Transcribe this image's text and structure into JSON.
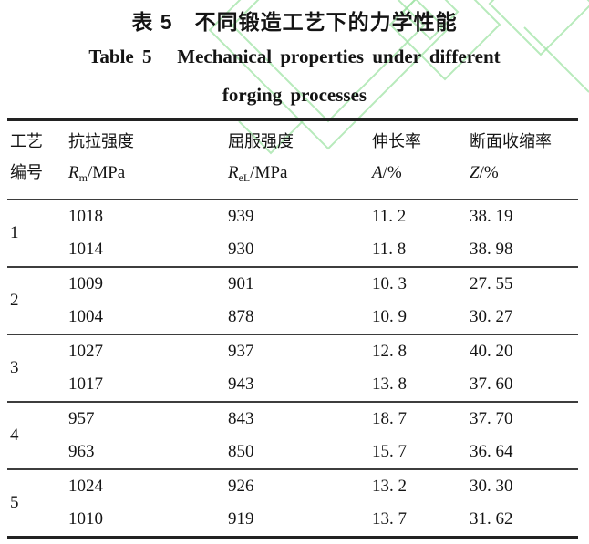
{
  "page": {
    "background": "#ffffff",
    "text_color": "#141414",
    "rule_color_outer": "#222222",
    "rule_color_inner": "#3d3d3d",
    "watermark_color": "#9fe3a4"
  },
  "titles": {
    "zh": "表 5　不同锻造工艺下的力学性能",
    "en_line1": "Table 5   Mechanical properties under different",
    "en_line2": "forging processes"
  },
  "table": {
    "header": {
      "col1_line1": "工艺",
      "col1_line2": "编号",
      "col2_cn": "抗拉强度",
      "col2_sym": "R",
      "col2_sub": "m",
      "col2_unit": "/MPa",
      "col3_cn": "屈服强度",
      "col3_sym": "R",
      "col3_sub": "eL",
      "col3_unit": "/MPa",
      "col4_cn": "伸长率",
      "col4_sym": "A",
      "col4_sub": "",
      "col4_unit": "/%",
      "col5_cn": "断面收缩率",
      "col5_sym": "Z",
      "col5_sub": "",
      "col5_unit": "/%"
    },
    "groups": [
      {
        "id": "1",
        "rows": [
          [
            "1018",
            "939",
            "11. 2",
            "38. 19"
          ],
          [
            "1014",
            "930",
            "11. 8",
            "38. 98"
          ]
        ]
      },
      {
        "id": "2",
        "rows": [
          [
            "1009",
            "901",
            "10. 3",
            "27. 55"
          ],
          [
            "1004",
            "878",
            "10. 9",
            "30. 27"
          ]
        ]
      },
      {
        "id": "3",
        "rows": [
          [
            "1027",
            "937",
            "12. 8",
            "40. 20"
          ],
          [
            "1017",
            "943",
            "13. 8",
            "37. 60"
          ]
        ]
      },
      {
        "id": "4",
        "rows": [
          [
            "957",
            "843",
            "18. 7",
            "37. 70"
          ],
          [
            "963",
            "850",
            "15. 7",
            "36. 64"
          ]
        ]
      },
      {
        "id": "5",
        "rows": [
          [
            "1024",
            "926",
            "13. 2",
            "30. 30"
          ],
          [
            "1010",
            "919",
            "13. 7",
            "31. 62"
          ]
        ]
      }
    ]
  }
}
